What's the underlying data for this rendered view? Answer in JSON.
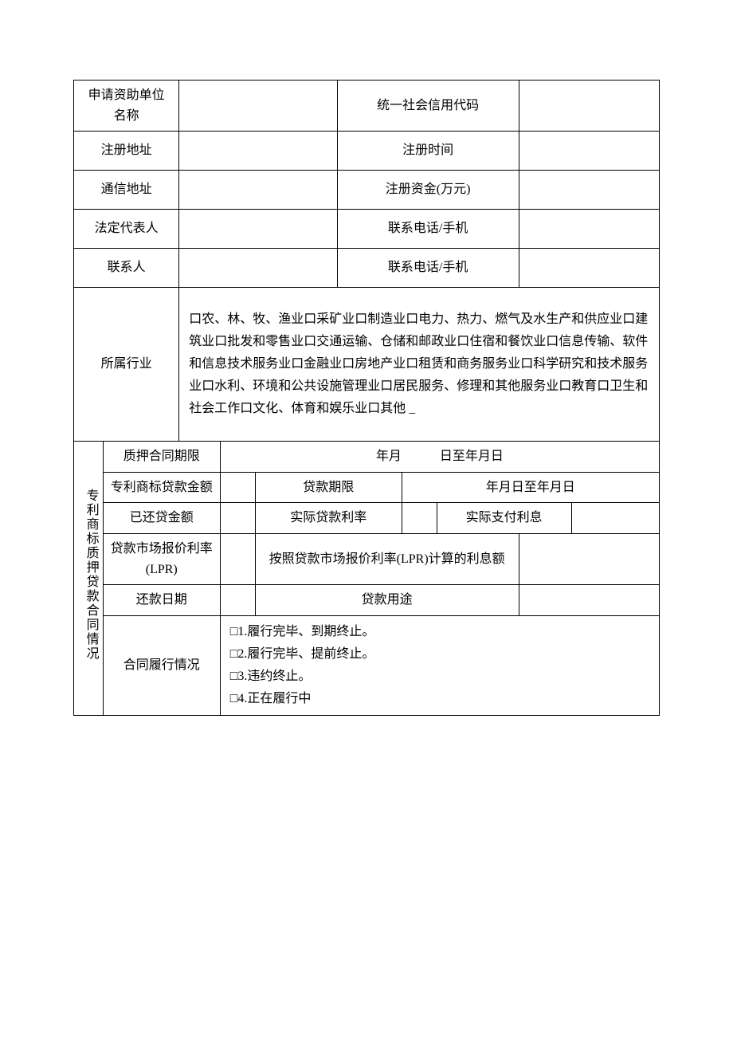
{
  "colors": {
    "background": "#ffffff",
    "border": "#000000",
    "text": "#000000"
  },
  "typography": {
    "font_family": "SimSun",
    "base_fontsize": 16,
    "line_height": 1.6
  },
  "checkbox_glyph": "口",
  "checkbox_glyph_alt": "□",
  "rows": {
    "app_unit": {
      "label": "申请资助单位\n名称",
      "value": ""
    },
    "uscc": {
      "label": "统一社会信用代码",
      "value": ""
    },
    "reg_addr": {
      "label": "注册地址",
      "value": ""
    },
    "reg_time": {
      "label": "注册时间",
      "value": ""
    },
    "mail_addr": {
      "label": "通信地址",
      "value": ""
    },
    "reg_cap": {
      "label": "注册资金(万元)",
      "value": ""
    },
    "legal_rep": {
      "label": "法定代表人",
      "value": ""
    },
    "phone1": {
      "label": "联系电话/手机",
      "value": ""
    },
    "contact": {
      "label": "联系人",
      "value": ""
    },
    "phone2": {
      "label": "联系电话/手机",
      "value": ""
    }
  },
  "industry": {
    "label": "所属行业",
    "text": "口农、林、牧、渔业口采矿业口制造业口电力、热力、燃气及水生产和供应业口建筑业口批发和零售业口交通运输、仓储和邮政业口住宿和餐饮业口信息传输、软件和信息技术服务业口金融业口房地产业口租赁和商务服务业口科学研究和技术服务业口水利、环境和公共设施管理业口居民服务、修理和其他服务业口教育口卫生和社会工作口文化、体育和娱乐业口其他 _"
  },
  "loan": {
    "section_label": "专利商标质押贷款合同情况",
    "pledge_term": {
      "label": "质押合同期限",
      "value": "年月　　　日至年月日"
    },
    "loan_amount": {
      "label": "专利商标贷款金额",
      "value": ""
    },
    "loan_term": {
      "label": "贷款期限",
      "value": "年月日至年月日"
    },
    "repaid": {
      "label": "已还贷金额",
      "value": ""
    },
    "actual_rate": {
      "label": "实际贷款利率",
      "value": ""
    },
    "actual_interest": {
      "label": "实际支付利息",
      "value": ""
    },
    "lpr_rate": {
      "label": "贷款市场报价利率(LPR)",
      "value": ""
    },
    "lpr_interest": {
      "label": "按照贷款市场报价利率(LPR)计算的利息额",
      "value": ""
    },
    "repay_date": {
      "label": "还款日期",
      "value": ""
    },
    "loan_purpose": {
      "label": "贷款用途",
      "value": ""
    },
    "performance": {
      "label": "合同履行情况",
      "options": [
        "□1.履行完毕、到期终止。",
        "□2.履行完毕、提前终止。",
        "□3.违约终止。",
        "□4.正在履行中"
      ]
    }
  }
}
